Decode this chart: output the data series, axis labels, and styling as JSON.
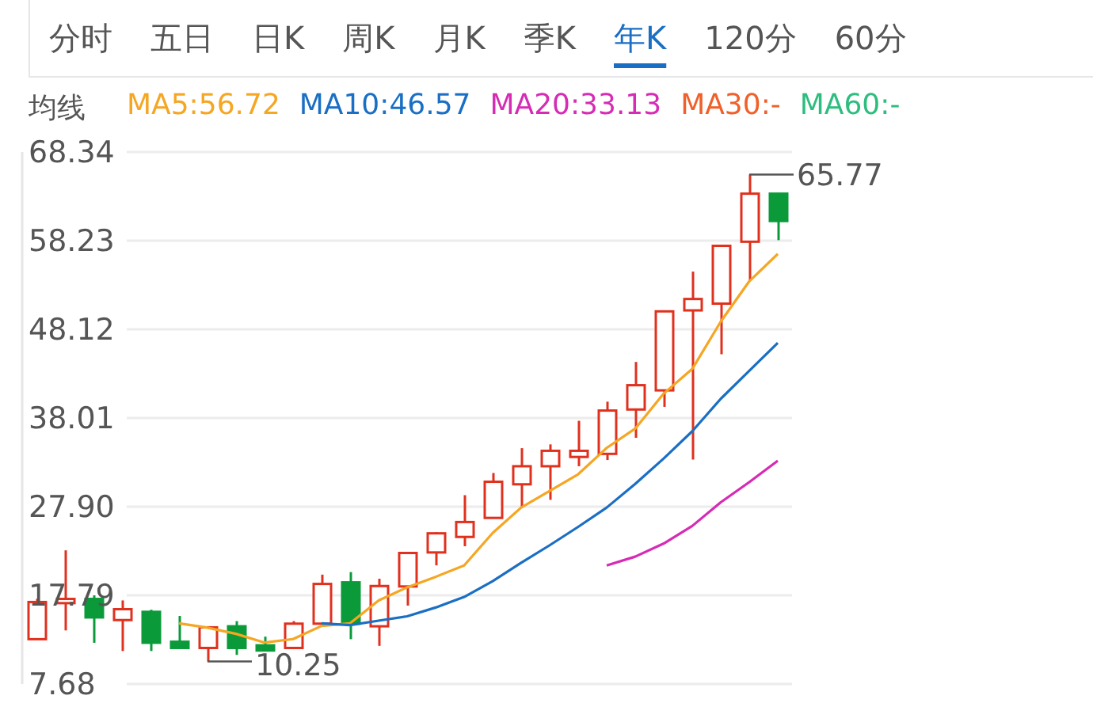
{
  "chart_data": {
    "type": "candlestick",
    "legend_title": "均线",
    "legend": "top left",
    "grid": "y",
    "annotations": [
      "分时",
      "五日",
      "日K",
      "周K",
      "月K",
      "季K",
      "年K",
      "120分",
      "60分",
      "65.77",
      "10.25"
    ],
    "categories": [
      null,
      null,
      null,
      null,
      null,
      null,
      null,
      null,
      null,
      null,
      null,
      null,
      null,
      null,
      null,
      null,
      null,
      null,
      null,
      null,
      null,
      null,
      null,
      null,
      null,
      null,
      null
    ],
    "ohlc": [
      [
        12.79,
        17.4,
        12.79,
        17.03
      ],
      [
        16.9,
        22.92,
        13.79,
        17.38
      ],
      [
        17.38,
        17.79,
        12.38,
        15.27
      ],
      [
        14.97,
        17.21,
        11.44,
        16.21
      ],
      [
        15.91,
        16.15,
        11.44,
        12.38
      ],
      [
        12.5,
        15.44,
        11.79,
        11.79
      ],
      [
        11.79,
        14.14,
        10.25,
        14.14
      ],
      [
        14.26,
        14.85,
        11.0,
        11.79
      ],
      [
        12.09,
        13.08,
        11.5,
        11.5
      ],
      [
        11.79,
        14.85,
        11.79,
        14.56
      ],
      [
        14.56,
        20.15,
        14.56,
        19.09
      ],
      [
        19.27,
        20.44,
        12.79,
        14.56
      ],
      [
        14.26,
        19.68,
        12.03,
        18.85
      ],
      [
        18.8,
        22.62,
        16.62,
        22.62
      ],
      [
        22.68,
        24.98,
        21.21,
        24.86
      ],
      [
        24.45,
        29.21,
        23.39,
        26.15
      ],
      [
        26.62,
        31.74,
        26.62,
        30.74
      ],
      [
        30.45,
        34.57,
        27.8,
        32.51
      ],
      [
        32.51,
        35.0,
        28.68,
        34.27
      ],
      [
        33.57,
        37.69,
        32.51,
        34.27
      ],
      [
        33.92,
        39.87,
        33.22,
        38.86
      ],
      [
        38.98,
        44.4,
        35.75,
        41.75
      ],
      [
        41.16,
        50.28,
        39.28,
        50.17
      ],
      [
        50.28,
        54.7,
        33.27,
        51.58
      ],
      [
        51.05,
        57.64,
        45.28,
        57.64
      ],
      [
        58.11,
        65.77,
        53.7,
        63.59
      ],
      [
        63.59,
        63.59,
        58.29,
        60.47
      ]
    ],
    "colors": [
      "#e0301e",
      "#e0301e",
      "#0a9a3a",
      "#e0301e",
      "#0a9a3a",
      "#0a9a3a",
      "#e0301e",
      "#0a9a3a",
      "#0a9a3a",
      "#e0301e",
      "#e0301e",
      "#0a9a3a",
      "#e0301e",
      "#e0301e",
      "#e0301e",
      "#e0301e",
      "#e0301e",
      "#e0301e",
      "#e0301e",
      "#e0301e",
      "#e0301e",
      "#e0301e",
      "#e0301e",
      "#e0301e",
      "#e0301e",
      "#e0301e",
      "#0a9a3a"
    ],
    "series": [
      {
        "name": "MA5:56.72",
        "type": "line",
        "color": "#f5a623",
        "values": [
          null,
          null,
          null,
          null,
          null,
          14.6,
          14.1,
          13.4,
          12.4,
          12.8,
          14.3,
          14.6,
          17.2,
          18.7,
          19.9,
          21.2,
          24.9,
          27.8,
          29.7,
          31.6,
          34.6,
          36.8,
          40.8,
          43.6,
          49.0,
          53.6,
          56.72
        ]
      },
      {
        "name": "MA10:46.57",
        "type": "line",
        "color": "#1a6fc4",
        "values": [
          null,
          null,
          null,
          null,
          null,
          null,
          null,
          null,
          null,
          null,
          14.6,
          14.4,
          14.9,
          15.4,
          16.4,
          17.6,
          19.4,
          21.5,
          23.5,
          25.6,
          27.8,
          30.5,
          33.4,
          36.5,
          40.2,
          43.4,
          46.57
        ]
      },
      {
        "name": "MA20:33.13",
        "type": "line",
        "color": "#d62bb5",
        "values": [
          null,
          null,
          null,
          null,
          null,
          null,
          null,
          null,
          null,
          null,
          null,
          null,
          null,
          null,
          null,
          null,
          null,
          null,
          null,
          null,
          21.2,
          22.2,
          23.7,
          25.7,
          28.4,
          30.7,
          33.13
        ]
      },
      {
        "name": "MA30:-",
        "type": "line",
        "color": "#f0602a",
        "values": [
          null,
          null,
          null,
          null,
          null,
          null,
          null,
          null,
          null,
          null,
          null,
          null,
          null,
          null,
          null,
          null,
          null,
          null,
          null,
          null,
          null,
          null,
          null,
          null,
          null,
          null,
          null
        ]
      },
      {
        "name": "MA60:-",
        "type": "line",
        "color": "#2dbd7e",
        "values": [
          null,
          null,
          null,
          null,
          null,
          null,
          null,
          null,
          null,
          null,
          null,
          null,
          null,
          null,
          null,
          null,
          null,
          null,
          null,
          null,
          null,
          null,
          null,
          null,
          null,
          null,
          null
        ]
      }
    ],
    "ylim": [
      7.68,
      68.34
    ],
    "yticks": [
      7.68,
      17.79,
      {
        "value": 27.9,
        "label": "27.90"
      },
      38.01,
      48.12,
      58.23,
      68.34
    ]
  }
}
